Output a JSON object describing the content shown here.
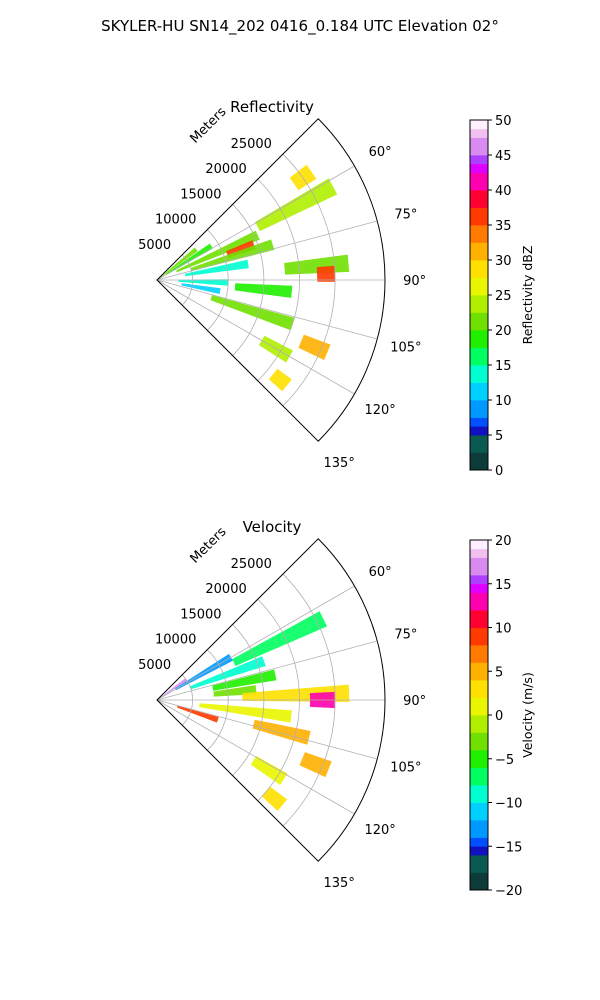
{
  "figure": {
    "suptitle": "SKYLER-HU  SN14_202  0416_0.184 UTC Elevation 02°"
  },
  "chart_data": [
    {
      "type": "heatmap",
      "projection": "polar-sector",
      "title": "Reflectivity",
      "range_axis_label": "Meters",
      "range_ticks": [
        "5000",
        "10000",
        "15000",
        "20000",
        "25000"
      ],
      "range_tick_values": [
        5000,
        10000,
        15000,
        20000,
        25000
      ],
      "range_max": 32000,
      "angle_range": [
        45,
        135
      ],
      "angle_ticks": [
        "60°",
        "75°",
        "90°",
        "105°",
        "120°",
        "135°"
      ],
      "angle_tick_values": [
        60,
        75,
        90,
        105,
        120,
        135
      ],
      "grid": true,
      "colorbar": {
        "label": "Reflectivity dBZ",
        "min": 0,
        "max": 50,
        "ticks": [
          "0",
          "5",
          "10",
          "15",
          "20",
          "25",
          "30",
          "35",
          "40",
          "45",
          "50"
        ],
        "tick_values": [
          0,
          5,
          10,
          15,
          20,
          25,
          30,
          35,
          40,
          45,
          50
        ]
      },
      "echoes": [
        {
          "az": 52,
          "r_from": 0,
          "r_to": 7000,
          "value": 21
        },
        {
          "az": 58,
          "r_from": 1500,
          "r_to": 9000,
          "value": 19
        },
        {
          "az": 66,
          "r_from": 3000,
          "r_to": 15500,
          "value": 21
        },
        {
          "az": 62,
          "r_from": 16000,
          "r_to": 28000,
          "value": 25
        },
        {
          "az": 55,
          "r_from": 23500,
          "r_to": 26500,
          "value": 30
        },
        {
          "az": 70,
          "r_from": 10500,
          "r_to": 14500,
          "value": 36
        },
        {
          "az": 73,
          "r_from": 5000,
          "r_to": 17000,
          "value": 21
        },
        {
          "az": 80,
          "r_from": 4000,
          "r_to": 13000,
          "value": 14
        },
        {
          "az": 92,
          "r_from": 3000,
          "r_to": 10000,
          "value": 13
        },
        {
          "az": 100,
          "r_from": 3500,
          "r_to": 9000,
          "value": 12
        },
        {
          "az": 85,
          "r_from": 18000,
          "r_to": 27000,
          "value": 22
        },
        {
          "az": 88,
          "r_from": 22500,
          "r_to": 25000,
          "value": 37
        },
        {
          "az": 95,
          "r_from": 11000,
          "r_to": 19000,
          "value": 19
        },
        {
          "az": 108,
          "r_from": 8000,
          "r_to": 20000,
          "value": 22
        },
        {
          "az": 113,
          "r_from": 22000,
          "r_to": 26000,
          "value": 31
        },
        {
          "az": 120,
          "r_from": 17000,
          "r_to": 21500,
          "value": 24
        },
        {
          "az": 129,
          "r_from": 21000,
          "r_to": 23500,
          "value": 28
        }
      ]
    },
    {
      "type": "heatmap",
      "projection": "polar-sector",
      "title": "Velocity",
      "range_axis_label": "Meters",
      "range_ticks": [
        "5000",
        "10000",
        "15000",
        "20000",
        "25000"
      ],
      "range_tick_values": [
        5000,
        10000,
        15000,
        20000,
        25000
      ],
      "range_max": 32000,
      "angle_range": [
        45,
        135
      ],
      "angle_ticks": [
        "60°",
        "75°",
        "90°",
        "105°",
        "120°",
        "135°"
      ],
      "angle_tick_values": [
        60,
        75,
        90,
        105,
        120,
        135
      ],
      "grid": true,
      "colorbar": {
        "label": "Velocity (m/s)",
        "min": -20,
        "max": 20,
        "ticks": [
          "−20",
          "−15",
          "−10",
          "−5",
          "0",
          "5",
          "10",
          "15",
          "20"
        ],
        "tick_values": [
          -20,
          -15,
          -10,
          -5,
          0,
          5,
          10,
          15,
          20
        ]
      },
      "echoes": [
        {
          "az": 55,
          "r_from": 0,
          "r_to": 5000,
          "value": 17
        },
        {
          "az": 60,
          "r_from": 3000,
          "r_to": 12000,
          "value": -13
        },
        {
          "az": 64,
          "r_from": 12000,
          "r_to": 26000,
          "value": -7
        },
        {
          "az": 70,
          "r_from": 5000,
          "r_to": 16000,
          "value": -9
        },
        {
          "az": 78,
          "r_from": 8000,
          "r_to": 17000,
          "value": -4
        },
        {
          "az": 84,
          "r_from": 8000,
          "r_to": 14000,
          "value": -2
        },
        {
          "az": 88,
          "r_from": 12000,
          "r_to": 27000,
          "value": 3
        },
        {
          "az": 90,
          "r_from": 21500,
          "r_to": 25000,
          "value": 13
        },
        {
          "az": 97,
          "r_from": 6000,
          "r_to": 19000,
          "value": 2
        },
        {
          "az": 104,
          "r_from": 14000,
          "r_to": 22000,
          "value": 5
        },
        {
          "az": 108,
          "r_from": 3000,
          "r_to": 9000,
          "value": 9
        },
        {
          "az": 112,
          "r_from": 22000,
          "r_to": 26000,
          "value": 6
        },
        {
          "az": 122,
          "r_from": 16000,
          "r_to": 21000,
          "value": 2
        },
        {
          "az": 130,
          "r_from": 20000,
          "r_to": 23000,
          "value": 4
        }
      ]
    }
  ]
}
